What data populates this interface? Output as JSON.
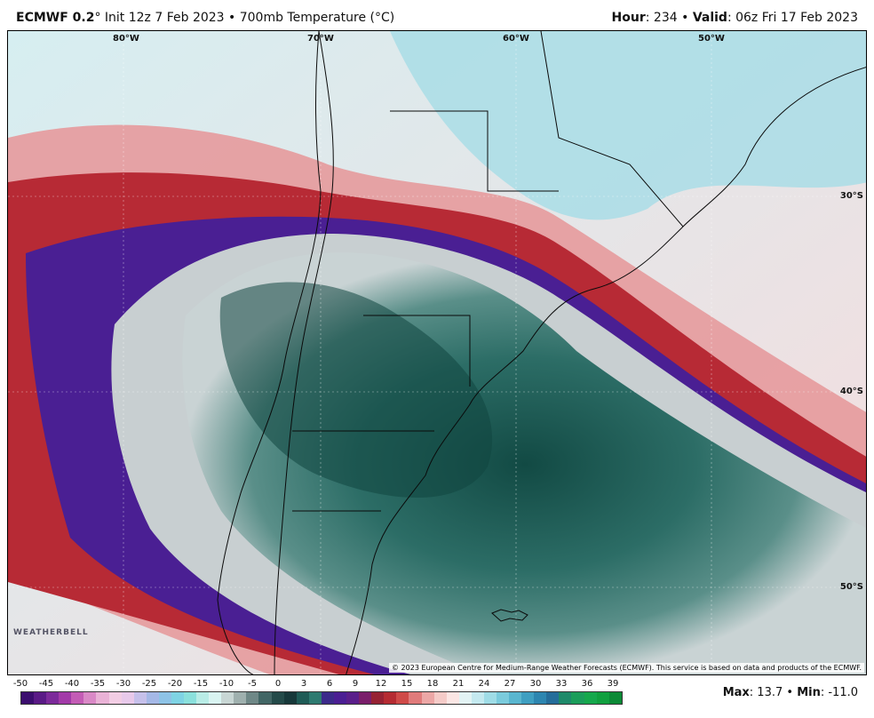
{
  "header": {
    "model": "ECMWF 0.2",
    "init": "° Init 12z 7 Feb 2023 • 700mb Temperature (°C)",
    "hour_label": "Hour",
    "hour_value": ": 234 • ",
    "valid_label": "Valid",
    "valid_value": ": 06z Fri 17 Feb 2023"
  },
  "map": {
    "longitude_labels": [
      "80°W",
      "70°W",
      "60°W",
      "50°W"
    ],
    "latitude_labels": [
      "30°S",
      "40°S",
      "50°S"
    ],
    "copyright": "© 2023 European Centre for Medium-Range Weather Forecasts (ECMWF). This service is based on data and products of the ECMWF.",
    "logo": "WEATHERBELL"
  },
  "colorbar": {
    "tick_labels": [
      "-50",
      "-45",
      "-40",
      "-35",
      "-30",
      "-25",
      "-20",
      "-15",
      "-10",
      "-5",
      "0",
      "3",
      "6",
      "9",
      "12",
      "15",
      "18",
      "21",
      "24",
      "27",
      "30",
      "33",
      "36",
      "39"
    ],
    "colors": [
      "#3b0e6e",
      "#5a1a86",
      "#7c2a9a",
      "#a23aa8",
      "#c35cb5",
      "#d989c6",
      "#e9b2d6",
      "#f2cde4",
      "#e8c9ea",
      "#c6c0ea",
      "#a5b8e6",
      "#8ec3e6",
      "#7fd3e4",
      "#8be0dc",
      "#b9ece6",
      "#d9f4f1",
      "#c8d6d4",
      "#9fb0ae",
      "#6f8887",
      "#426665",
      "#244a49",
      "#17383a",
      "#1f5b56",
      "#2e7a70",
      "#3c2a8a",
      "#4b1e93",
      "#5a1e8a",
      "#7a1e6a",
      "#962233",
      "#b52b32",
      "#cf4a48",
      "#e07b7b",
      "#eca7a6",
      "#f5cbc8",
      "#fbe6e4",
      "#e3f3f4",
      "#c4e9ef",
      "#9fdce6",
      "#7bcbdc",
      "#5ab6cf",
      "#3f9fc1",
      "#2d86b0",
      "#256d9a",
      "#1f8a6a",
      "#1b9d5a",
      "#16a84c",
      "#11a03f",
      "#0c8a36"
    ],
    "max_label": "Max",
    "max_value": ": 13.7 • ",
    "min_label": "Min",
    "min_value": ": -11.0"
  }
}
